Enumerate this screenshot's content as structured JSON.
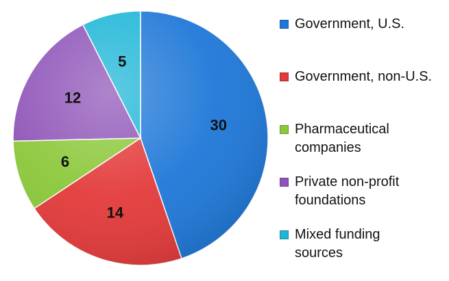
{
  "chart_data": {
    "type": "pie",
    "title": "",
    "start": "12 o'clock, clockwise",
    "legend_position": "right",
    "slices": [
      {
        "label": "Government, U.S.",
        "value": 30,
        "color": "#1f78d8"
      },
      {
        "label": "Government, non-U.S.",
        "value": 14,
        "color": "#e33a3a"
      },
      {
        "label": "Pharmaceutical companies",
        "value": 6,
        "color": "#8bc83a"
      },
      {
        "label": "Private non-profit foundations",
        "value": 12,
        "color": "#8f55b8"
      },
      {
        "label": "Mixed funding sources",
        "value": 5,
        "color": "#1fb6d8"
      }
    ]
  }
}
